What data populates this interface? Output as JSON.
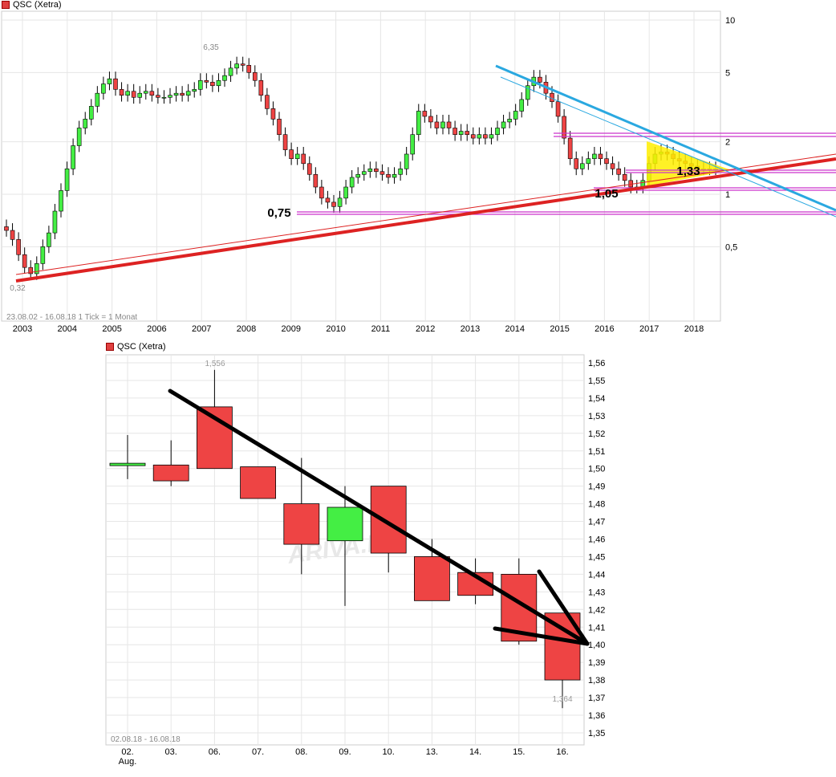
{
  "top": {
    "legend": "QSC (Xetra)",
    "range_label": "23.08.02 - 16.08.18",
    "tick_label": "1 Tick = 1 Monat",
    "chart_data": {
      "type": "candlestick",
      "scale": "log",
      "y_ticks": [
        "10",
        "5",
        "2",
        "1",
        "0,5"
      ],
      "y_tick_values": [
        10,
        5,
        2,
        1,
        0.5
      ],
      "x_ticks": [
        "2003",
        "2004",
        "2005",
        "2006",
        "2007",
        "2008",
        "2009",
        "2010",
        "2011",
        "2012",
        "2013",
        "2014",
        "2015",
        "2016",
        "2017",
        "2018"
      ],
      "annotations": {
        "high": "6,35",
        "low": "0,32",
        "label_075": "0,75",
        "label_105": "1,05",
        "label_133": "1,33"
      },
      "series_close": [
        0.62,
        0.55,
        0.45,
        0.38,
        0.35,
        0.4,
        0.5,
        0.6,
        0.8,
        1.05,
        1.4,
        1.9,
        2.4,
        2.7,
        3.2,
        3.8,
        4.3,
        4.6,
        4.0,
        3.7,
        3.9,
        3.6,
        3.8,
        3.9,
        3.7,
        3.6,
        3.6,
        3.7,
        3.8,
        3.7,
        3.9,
        4.0,
        4.5,
        4.4,
        4.2,
        4.5,
        4.8,
        5.3,
        5.6,
        5.5,
        5.0,
        4.5,
        3.7,
        3.1,
        2.7,
        2.2,
        1.8,
        1.6,
        1.7,
        1.5,
        1.3,
        1.1,
        0.95,
        0.9,
        0.85,
        0.95,
        1.1,
        1.25,
        1.3,
        1.35,
        1.4,
        1.35,
        1.3,
        1.25,
        1.3,
        1.4,
        1.7,
        2.2,
        3.0,
        2.8,
        2.6,
        2.4,
        2.6,
        2.4,
        2.2,
        2.3,
        2.2,
        2.1,
        2.2,
        2.1,
        2.2,
        2.4,
        2.6,
        2.7,
        3.0,
        3.5,
        4.2,
        4.7,
        4.4,
        3.8,
        3.4,
        2.8,
        2.1,
        1.6,
        1.4,
        1.5,
        1.6,
        1.7,
        1.6,
        1.5,
        1.4,
        1.3,
        1.2,
        1.1,
        1.1,
        1.2,
        1.5,
        1.7,
        1.75,
        1.7,
        1.6,
        1.55,
        1.5,
        1.45,
        1.4,
        1.4,
        1.4,
        1.4
      ]
    }
  },
  "bottom": {
    "legend": "QSC (Xetra)",
    "range_label": "02.08.18 - 16.08.18",
    "watermark": "ARIVA.DE",
    "chart_data": {
      "type": "candlestick",
      "y_ticks": [
        "1,56",
        "1,55",
        "1,54",
        "1,53",
        "1,52",
        "1,51",
        "1,50",
        "1,49",
        "1,48",
        "1,47",
        "1,46",
        "1,45",
        "1,44",
        "1,43",
        "1,42",
        "1,41",
        "1,40",
        "1,39",
        "1,38",
        "1,37",
        "1,36",
        "1,35"
      ],
      "x_labels": [
        "02.",
        "03.",
        "06.",
        "07.",
        "08.",
        "09.",
        "10.",
        "13.",
        "14.",
        "15.",
        "16."
      ],
      "x_sublabel": "Aug.",
      "annotations": {
        "high": "1,556",
        "low": "1,364"
      },
      "candles": [
        {
          "date": "02.",
          "open": 1.503,
          "close": 1.503,
          "high": 1.519,
          "low": 1.494
        },
        {
          "date": "03.",
          "open": 1.502,
          "close": 1.493,
          "high": 1.516,
          "low": 1.49
        },
        {
          "date": "06.",
          "open": 1.535,
          "close": 1.5,
          "high": 1.556,
          "low": 1.5
        },
        {
          "date": "07.",
          "open": 1.501,
          "close": 1.483,
          "high": 1.501,
          "low": 1.483
        },
        {
          "date": "08.",
          "open": 1.48,
          "close": 1.457,
          "high": 1.506,
          "low": 1.44
        },
        {
          "date": "09.",
          "open": 1.459,
          "close": 1.478,
          "high": 1.49,
          "low": 1.422
        },
        {
          "date": "10.",
          "open": 1.49,
          "close": 1.452,
          "high": 1.49,
          "low": 1.441
        },
        {
          "date": "13.",
          "open": 1.45,
          "close": 1.425,
          "high": 1.46,
          "low": 1.425
        },
        {
          "date": "14.",
          "open": 1.441,
          "close": 1.428,
          "high": 1.449,
          "low": 1.423
        },
        {
          "date": "15.",
          "open": 1.44,
          "close": 1.402,
          "high": 1.449,
          "low": 1.4
        },
        {
          "date": "16.",
          "open": 1.418,
          "close": 1.38,
          "high": 1.418,
          "low": 1.364
        }
      ]
    }
  },
  "colors": {
    "up": "#44ee44",
    "down": "#ee4444",
    "grid": "#e6e6e6",
    "trend_red": "#dd2222",
    "trend_blue": "#2aa8e0",
    "magenta": "#cc33cc",
    "yellow": "#ffee00"
  }
}
